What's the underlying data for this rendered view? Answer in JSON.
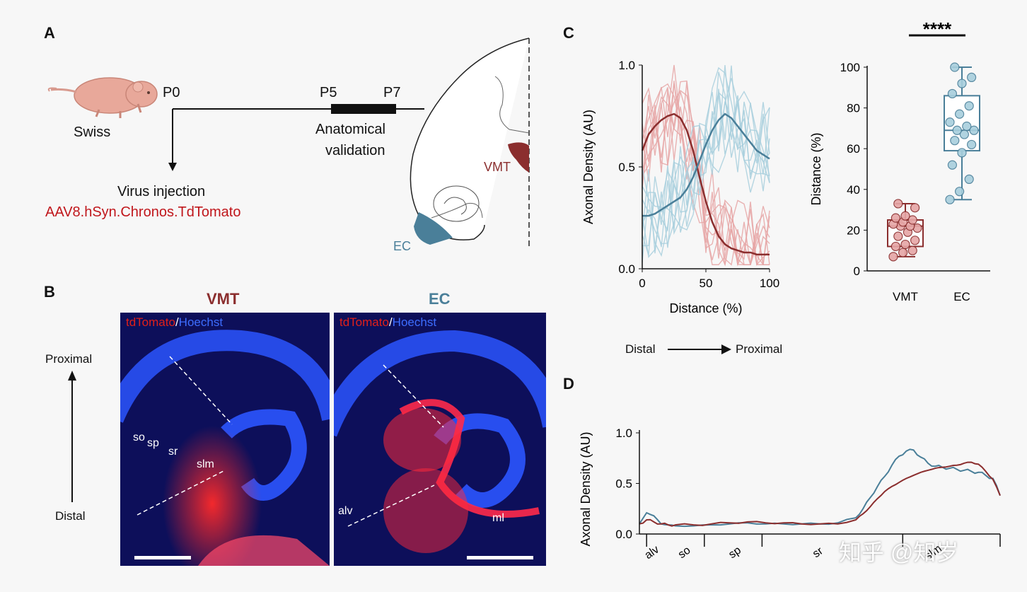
{
  "panels": {
    "a": "A",
    "b": "B",
    "c": "C",
    "d": "D"
  },
  "panel_a": {
    "strain": "Swiss",
    "p0": "P0",
    "p5": "P5",
    "p7": "P7",
    "validation_line1": "Anatomical",
    "validation_line2": "validation",
    "injection": "Virus injection",
    "virus": "AAV8.hSyn.Chronos.TdTomato",
    "vmt": "VMT",
    "ec": "EC"
  },
  "panel_b": {
    "title_vmt": "VMT",
    "title_ec": "EC",
    "stain_red": "tdTomato",
    "stain_sep": "/",
    "stain_blue": "Hoechst",
    "proximal": "Proximal",
    "distal": "Distal",
    "layers_left": {
      "so": "so",
      "sp": "sp",
      "sr": "sr",
      "slm": "slm"
    },
    "layers_right": {
      "alv": "alv",
      "ml": "ml"
    }
  },
  "distal_proximal": {
    "left": "Distal",
    "right": "Proximal"
  },
  "colors": {
    "vmt": "#8b2e2e",
    "vmt_light": "#e6a6a6",
    "ec": "#4a7f99",
    "ec_light": "#a8cfdd",
    "accent_red": "#c0161b"
  },
  "watermark": "知乎 @知岁",
  "chart_data": [
    {
      "type": "line",
      "panel": "C-left",
      "xlabel": "Distance (%)",
      "ylabel": "Axonal Density (AU)",
      "xlim": [
        0,
        100
      ],
      "ylim": [
        0,
        1.0
      ],
      "xticks": [
        "0",
        "50",
        "100"
      ],
      "yticks": [
        "0.0",
        "0.5",
        "1.0"
      ],
      "x": [
        0,
        5,
        10,
        15,
        20,
        25,
        30,
        35,
        40,
        45,
        50,
        55,
        60,
        65,
        70,
        75,
        80,
        85,
        90,
        95,
        100
      ],
      "series": [
        {
          "color": "#8b2e2e",
          "values": [
            0.58,
            0.66,
            0.7,
            0.73,
            0.75,
            0.76,
            0.74,
            0.68,
            0.58,
            0.45,
            0.33,
            0.23,
            0.16,
            0.12,
            0.1,
            0.09,
            0.08,
            0.08,
            0.07,
            0.07,
            0.07
          ]
        },
        {
          "color": "#4a7f99",
          "values": [
            0.26,
            0.26,
            0.27,
            0.29,
            0.31,
            0.33,
            0.35,
            0.39,
            0.45,
            0.53,
            0.61,
            0.68,
            0.73,
            0.76,
            0.74,
            0.7,
            0.66,
            0.62,
            0.58,
            0.56,
            0.54
          ]
        }
      ]
    },
    {
      "type": "box",
      "panel": "C-right",
      "ylabel": "Distance (%)",
      "ylim": [
        0,
        100
      ],
      "yticks": [
        "0",
        "20",
        "40",
        "60",
        "80",
        "100"
      ],
      "categories": [
        "VMT",
        "EC"
      ],
      "significance": "****",
      "boxes": [
        {
          "min": 7,
          "q1": 12,
          "median": 22,
          "q3": 25,
          "max": 33,
          "points": [
            7,
            9,
            10,
            12,
            13,
            15,
            17,
            19,
            21,
            22,
            22,
            23,
            24,
            25,
            26,
            27,
            31,
            33
          ]
        },
        {
          "min": 35,
          "q1": 59,
          "median": 69,
          "q3": 86,
          "max": 100,
          "points": [
            35,
            39,
            45,
            52,
            58,
            62,
            64,
            67,
            69,
            69,
            71,
            73,
            77,
            81,
            87,
            92,
            95,
            100
          ]
        }
      ]
    },
    {
      "type": "line",
      "panel": "D",
      "ylabel": "Axonal Density (AU)",
      "ylim": [
        0,
        1.0
      ],
      "yticks": [
        "0.0",
        "0.5",
        "1.0"
      ],
      "xcategories": [
        "alv",
        "so",
        "sp",
        "sr",
        "slm"
      ],
      "x": [
        0,
        2,
        4,
        6,
        8,
        10,
        15,
        20,
        25,
        30,
        35,
        40,
        45,
        50,
        55,
        60,
        62,
        64,
        66,
        68,
        70,
        72,
        74,
        76,
        78,
        80,
        82,
        84,
        86,
        88,
        90,
        92,
        94,
        96,
        98,
        100
      ],
      "series": [
        {
          "color": "#4a7f99",
          "values": [
            0.1,
            0.21,
            0.18,
            0.1,
            0.09,
            0.08,
            0.08,
            0.09,
            0.1,
            0.11,
            0.1,
            0.1,
            0.1,
            0.1,
            0.11,
            0.16,
            0.25,
            0.36,
            0.47,
            0.57,
            0.68,
            0.77,
            0.82,
            0.83,
            0.76,
            0.7,
            0.67,
            0.66,
            0.65,
            0.64,
            0.63,
            0.62,
            0.61,
            0.58,
            0.55,
            0.38
          ]
        },
        {
          "color": "#8b2e2e",
          "values": [
            0.1,
            0.14,
            0.12,
            0.1,
            0.09,
            0.09,
            0.09,
            0.1,
            0.11,
            0.12,
            0.11,
            0.11,
            0.1,
            0.1,
            0.1,
            0.14,
            0.2,
            0.27,
            0.35,
            0.42,
            0.47,
            0.51,
            0.55,
            0.58,
            0.61,
            0.63,
            0.65,
            0.66,
            0.67,
            0.68,
            0.7,
            0.71,
            0.69,
            0.62,
            0.54,
            0.38
          ]
        }
      ]
    }
  ]
}
